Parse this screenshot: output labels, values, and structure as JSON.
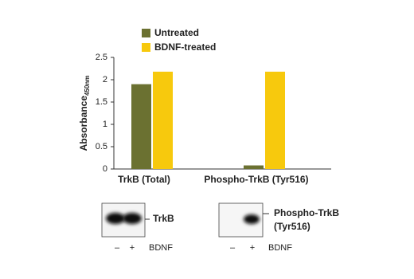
{
  "chart_data": {
    "type": "bar",
    "y_label": "Absorbance",
    "y_label_sub": "450nm",
    "categories": [
      "TrkB (Total)",
      "Phospho-TrkB (Tyr516)"
    ],
    "series": [
      {
        "name": "Untreated",
        "color": "#6b7131",
        "values": [
          1.9,
          0.08
        ]
      },
      {
        "name": "BDNF-treated",
        "color": "#f7c90d",
        "values": [
          2.18,
          2.18
        ]
      }
    ],
    "ylim": [
      0,
      2.5
    ],
    "yticks": [
      0,
      0.5,
      1,
      1.5,
      2,
      2.5
    ]
  },
  "blots": [
    {
      "label": [
        "TrkB"
      ],
      "lanes": [
        "–",
        "+"
      ],
      "treatment": "BDNF"
    },
    {
      "label": [
        "Phospho-TrkB",
        "(Tyr516)"
      ],
      "lanes": [
        "–",
        "+"
      ],
      "treatment": "BDNF"
    }
  ]
}
